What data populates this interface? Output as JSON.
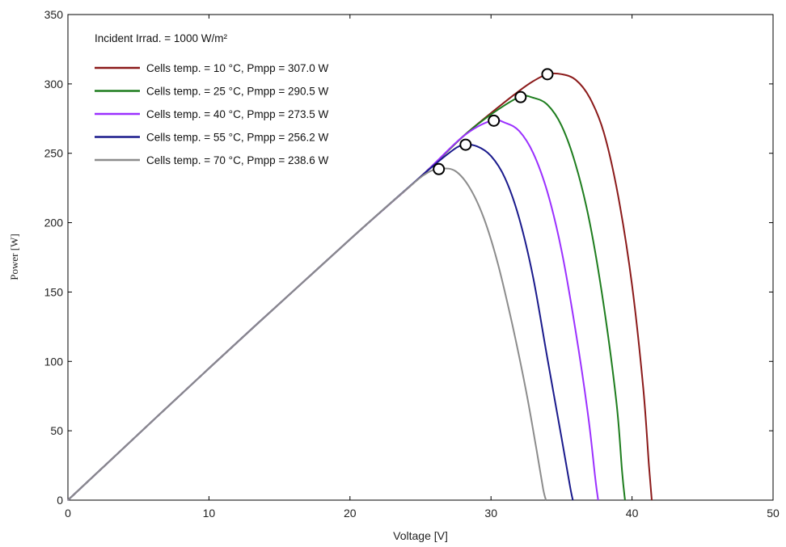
{
  "chart_data": {
    "type": "line",
    "title": "",
    "xlabel": "Voltage [V]",
    "ylabel": "Power [W]",
    "xlim": [
      0,
      50
    ],
    "ylim": [
      0,
      350
    ],
    "x_ticks": [
      "0",
      "10",
      "20",
      "30",
      "40",
      "50"
    ],
    "y_ticks": [
      "0",
      "50",
      "100",
      "150",
      "200",
      "250",
      "300",
      "350"
    ],
    "grid": false,
    "legend_position": "top-left",
    "legend_header": "Incident Irrad. = 1000 W/m²",
    "series": [
      {
        "name": "Cells temp. = 10 °C,  Pmpp = 307.0 W",
        "color": "#8b1a1a",
        "mpp": [
          34.0,
          307.0
        ],
        "points": [
          [
            0,
            0
          ],
          [
            10,
            95
          ],
          [
            20,
            188
          ],
          [
            25,
            233
          ],
          [
            28,
            262
          ],
          [
            30,
            279
          ],
          [
            32,
            295
          ],
          [
            33,
            302
          ],
          [
            34,
            307
          ],
          [
            35,
            307
          ],
          [
            36,
            303
          ],
          [
            37,
            290
          ],
          [
            38,
            265
          ],
          [
            39,
            220
          ],
          [
            40,
            155
          ],
          [
            40.8,
            80
          ],
          [
            41.2,
            25
          ],
          [
            41.4,
            0
          ]
        ]
      },
      {
        "name": "Cells temp. = 25 °C,  Pmpp = 290.5 W",
        "color": "#1e7d1e",
        "mpp": [
          32.1,
          290.5
        ],
        "points": [
          [
            0,
            0
          ],
          [
            10,
            95
          ],
          [
            20,
            188
          ],
          [
            25,
            233
          ],
          [
            28,
            262
          ],
          [
            30,
            278
          ],
          [
            32,
            290.5
          ],
          [
            33,
            290
          ],
          [
            34,
            285
          ],
          [
            35,
            270
          ],
          [
            36,
            242
          ],
          [
            37,
            200
          ],
          [
            38,
            140
          ],
          [
            38.9,
            70
          ],
          [
            39.3,
            20
          ],
          [
            39.5,
            0
          ]
        ]
      },
      {
        "name": "Cells temp. = 40 °C,  Pmpp = 273.5 W",
        "color": "#9b30ff",
        "mpp": [
          30.2,
          273.5
        ],
        "points": [
          [
            0,
            0
          ],
          [
            10,
            95
          ],
          [
            20,
            188
          ],
          [
            25,
            233
          ],
          [
            28,
            262
          ],
          [
            30,
            273.5
          ],
          [
            31,
            272
          ],
          [
            32,
            266
          ],
          [
            33,
            250
          ],
          [
            34,
            222
          ],
          [
            35,
            180
          ],
          [
            36,
            122
          ],
          [
            36.9,
            60
          ],
          [
            37.4,
            15
          ],
          [
            37.6,
            0
          ]
        ]
      },
      {
        "name": "Cells temp. = 55 °C,  Pmpp = 256.2 W",
        "color": "#1a1a8c",
        "mpp": [
          28.2,
          256.2
        ],
        "points": [
          [
            0,
            0
          ],
          [
            10,
            95
          ],
          [
            20,
            188
          ],
          [
            25,
            233
          ],
          [
            27,
            250
          ],
          [
            28,
            256
          ],
          [
            29,
            255
          ],
          [
            30,
            248
          ],
          [
            31,
            232
          ],
          [
            32,
            203
          ],
          [
            33,
            160
          ],
          [
            34,
            102
          ],
          [
            35,
            45
          ],
          [
            35.6,
            10
          ],
          [
            35.8,
            0
          ]
        ]
      },
      {
        "name": "Cells temp. = 70 °C,  Pmpp = 238.6 W",
        "color": "#8c8c8c",
        "mpp": [
          26.3,
          238.6
        ],
        "points": [
          [
            0,
            0
          ],
          [
            10,
            95
          ],
          [
            20,
            188
          ],
          [
            24,
            224
          ],
          [
            25.5,
            236
          ],
          [
            26.5,
            239
          ],
          [
            27.5,
            237
          ],
          [
            28.5,
            225
          ],
          [
            29.5,
            203
          ],
          [
            30.5,
            170
          ],
          [
            31.5,
            127
          ],
          [
            32.5,
            78
          ],
          [
            33.2,
            38
          ],
          [
            33.7,
            8
          ],
          [
            33.9,
            0
          ]
        ]
      }
    ]
  }
}
